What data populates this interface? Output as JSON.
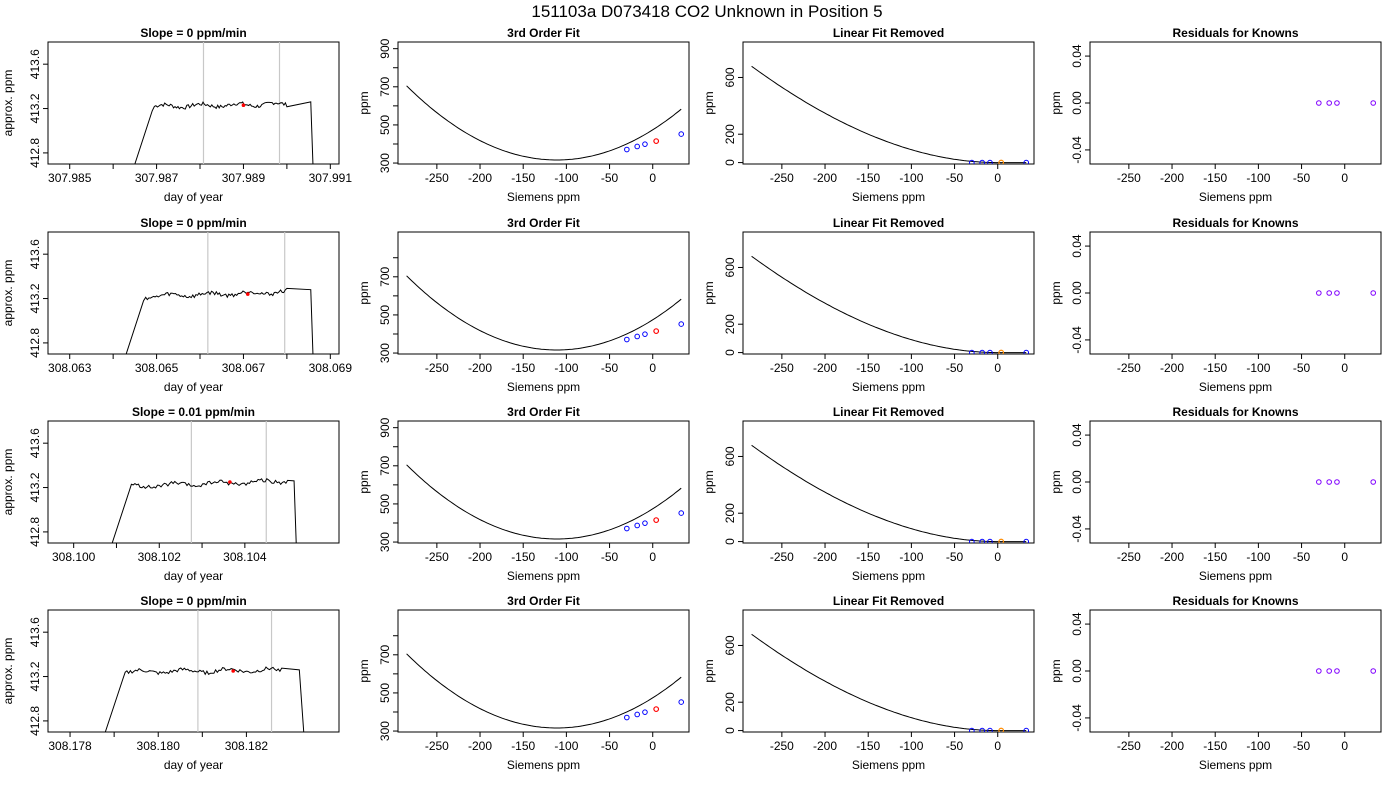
{
  "title": "151103a     D073418   CO2 Unknown in Position  5",
  "colors": {
    "line": "#000000",
    "known": "#0000ff",
    "unknown": "#ff0000",
    "unknown_linear": "#ff8c00",
    "residual": "#8000ff",
    "marker": "#c8c8c8"
  },
  "chart_data": [
    {
      "type": "line",
      "title": "Slope =  0  ppm/min",
      "xlabel": "day of year",
      "ylabel": "approx. ppm",
      "xticks": [
        "307.985",
        "307.987",
        "307.989",
        "307.991"
      ],
      "yticks": [
        "412.8",
        "413.2",
        "413.6"
      ],
      "xlim": [
        307.9845,
        307.9912
      ],
      "ylim": [
        412.7,
        413.8
      ],
      "series": [
        {
          "values_x": [
            307.9865,
            307.9869,
            307.98695,
            307.99,
            307.99055,
            307.9906
          ],
          "values_y": [
            412.7,
            413.18,
            413.22,
            413.24,
            413.26,
            412.7
          ]
        }
      ],
      "markers_x": [
        307.98808,
        307.98983
      ],
      "unknown_point": {
        "x": 307.989,
        "y": 413.23
      }
    },
    {
      "type": "scatter",
      "title": "3rd Order Fit",
      "xlabel": "Siemens ppm",
      "ylabel": "ppm",
      "xticks": [
        "-250",
        "-200",
        "-150",
        "-100",
        "-50",
        "0"
      ],
      "yticks": [
        "300",
        "500",
        "700",
        "900"
      ],
      "xlim": [
        -295,
        42
      ],
      "ylim": [
        295,
        935
      ],
      "knowns_x": [
        -30,
        -18,
        -9,
        33
      ],
      "knowns_y": [
        371,
        387,
        399,
        452
      ],
      "unknown": {
        "x": 4,
        "y": 415
      }
    },
    {
      "type": "scatter",
      "title": "Linear Fit Removed",
      "xlabel": "Siemens ppm",
      "ylabel": "ppm",
      "xticks": [
        "-250",
        "-200",
        "-150",
        "-100",
        "-50",
        "0"
      ],
      "yticks": [
        "0",
        "200",
        "600"
      ],
      "xlim": [
        -295,
        42
      ],
      "ylim": [
        -10,
        850
      ],
      "knowns_x": [
        -30,
        -18,
        -9,
        33
      ],
      "knowns_y": [
        0,
        0,
        0,
        0
      ],
      "unknown": {
        "x": 4,
        "y": 0
      }
    },
    {
      "type": "scatter",
      "title": "Residuals for Knowns",
      "xlabel": "Siemens ppm",
      "ylabel": "ppm",
      "xticks": [
        "-250",
        "-200",
        "-150",
        "-100",
        "-50",
        "0"
      ],
      "yticks": [
        "-0.04",
        "0.00",
        "0.04"
      ],
      "xlim": [
        -295,
        42
      ],
      "ylim": [
        -0.052,
        0.052
      ],
      "knowns_x": [
        -30,
        -18,
        -9,
        33
      ],
      "knowns_y": [
        0,
        0,
        0,
        0
      ]
    },
    {
      "type": "line",
      "title": "Slope =  0  ppm/min",
      "xlabel": "day of year",
      "ylabel": "approx. ppm",
      "xticks": [
        "308.063",
        "308.065",
        "308.067",
        "308.069"
      ],
      "yticks": [
        "412.8",
        "413.2",
        "413.6"
      ],
      "xlim": [
        308.0625,
        308.0692
      ],
      "ylim": [
        412.7,
        413.8
      ],
      "series": [
        {
          "values_x": [
            308.0643,
            308.0647,
            308.06475,
            308.068,
            308.06855,
            308.0686
          ],
          "values_y": [
            412.7,
            413.18,
            413.22,
            413.26,
            413.28,
            412.7
          ]
        }
      ],
      "markers_x": [
        308.06618,
        308.06795
      ],
      "unknown_point": {
        "x": 308.0671,
        "y": 413.24
      }
    },
    {
      "type": "scatter",
      "title": "3rd Order Fit",
      "xlabel": "Siemens ppm",
      "ylabel": "ppm",
      "xticks": [
        "-250",
        "-200",
        "-150",
        "-100",
        "-50",
        "0"
      ],
      "yticks": [
        "300",
        "500",
        "700"
      ],
      "xlim": [
        -295,
        42
      ],
      "ylim": [
        295,
        935
      ],
      "knowns_x": [
        -30,
        -18,
        -9,
        33
      ],
      "knowns_y": [
        371,
        387,
        399,
        452
      ],
      "unknown": {
        "x": 4,
        "y": 415
      }
    },
    {
      "type": "scatter",
      "title": "Linear Fit Removed",
      "xlabel": "Siemens ppm",
      "ylabel": "ppm",
      "xticks": [
        "-250",
        "-200",
        "-150",
        "-100",
        "-50",
        "0"
      ],
      "yticks": [
        "0",
        "200",
        "600"
      ],
      "xlim": [
        -295,
        42
      ],
      "ylim": [
        -10,
        850
      ],
      "knowns_x": [
        -30,
        -18,
        -9,
        33
      ],
      "knowns_y": [
        0,
        0,
        0,
        0
      ],
      "unknown": {
        "x": 4,
        "y": 0
      }
    },
    {
      "type": "scatter",
      "title": "Residuals for Knowns",
      "xlabel": "Siemens ppm",
      "ylabel": "ppm",
      "xticks": [
        "-250",
        "-200",
        "-150",
        "-100",
        "-50",
        "0"
      ],
      "yticks": [
        "-0.04",
        "0.00",
        "0.04"
      ],
      "xlim": [
        -295,
        42
      ],
      "ylim": [
        -0.052,
        0.052
      ],
      "knowns_x": [
        -30,
        -18,
        -9,
        33
      ],
      "knowns_y": [
        0,
        0,
        0,
        0
      ]
    },
    {
      "type": "line",
      "title": "Slope =  0.01  ppm/min",
      "xlabel": "day of year",
      "ylabel": "approx. ppm",
      "xticks": [
        "308.100",
        "308.102",
        "308.104"
      ],
      "yticks": [
        "412.8",
        "413.2",
        "413.6"
      ],
      "xlim": [
        308.0994,
        308.1062
      ],
      "ylim": [
        412.7,
        413.8
      ],
      "series": [
        {
          "values_x": [
            308.1009,
            308.1013,
            308.10135,
            308.105,
            308.10515,
            308.1052
          ],
          "values_y": [
            412.7,
            413.17,
            413.21,
            413.26,
            413.26,
            412.7
          ]
        }
      ],
      "markers_x": [
        308.10275,
        308.1045
      ],
      "unknown_point": {
        "x": 308.10365,
        "y": 413.25
      }
    },
    {
      "type": "scatter",
      "title": "3rd Order Fit",
      "xlabel": "Siemens ppm",
      "ylabel": "ppm",
      "xticks": [
        "-250",
        "-200",
        "-150",
        "-100",
        "-50",
        "0"
      ],
      "yticks": [
        "300",
        "500",
        "700",
        "900"
      ],
      "xlim": [
        -295,
        42
      ],
      "ylim": [
        295,
        935
      ],
      "knowns_x": [
        -30,
        -18,
        -9,
        33
      ],
      "knowns_y": [
        371,
        387,
        399,
        452
      ],
      "unknown": {
        "x": 4,
        "y": 415
      }
    },
    {
      "type": "scatter",
      "title": "Linear Fit Removed",
      "xlabel": "Siemens ppm",
      "ylabel": "ppm",
      "xticks": [
        "-250",
        "-200",
        "-150",
        "-100",
        "-50",
        "0"
      ],
      "yticks": [
        "0",
        "200",
        "600"
      ],
      "xlim": [
        -295,
        42
      ],
      "ylim": [
        -10,
        850
      ],
      "knowns_x": [
        -30,
        -18,
        -9,
        33
      ],
      "knowns_y": [
        0,
        0,
        0,
        0
      ],
      "unknown": {
        "x": 4,
        "y": 0
      }
    },
    {
      "type": "scatter",
      "title": "Residuals for Knowns",
      "xlabel": "Siemens ppm",
      "ylabel": "ppm",
      "xticks": [
        "-250",
        "-200",
        "-150",
        "-100",
        "-50",
        "0"
      ],
      "yticks": [
        "-0.04",
        "0.00",
        "0.04"
      ],
      "xlim": [
        -295,
        42
      ],
      "ylim": [
        -0.052,
        0.052
      ],
      "knowns_x": [
        -30,
        -18,
        -9,
        33
      ],
      "knowns_y": [
        0,
        0,
        0,
        0
      ]
    },
    {
      "type": "line",
      "title": "Slope =  0  ppm/min",
      "xlabel": "day of year",
      "ylabel": "approx. ppm",
      "xticks": [
        "308.178",
        "308.180",
        "308.182"
      ],
      "yticks": [
        "412.8",
        "413.2",
        "413.6"
      ],
      "xlim": [
        308.1775,
        308.1841
      ],
      "ylim": [
        412.7,
        413.8
      ],
      "series": [
        {
          "values_x": [
            308.1788,
            308.1792,
            308.17925,
            308.1828,
            308.1832,
            308.1833
          ],
          "values_y": [
            412.7,
            413.18,
            413.24,
            413.26,
            413.26,
            412.7
          ]
        }
      ],
      "markers_x": [
        308.1809,
        308.18257
      ],
      "unknown_point": {
        "x": 308.1817,
        "y": 413.25
      }
    },
    {
      "type": "scatter",
      "title": "3rd Order Fit",
      "xlabel": "Siemens ppm",
      "ylabel": "ppm",
      "xticks": [
        "-250",
        "-200",
        "-150",
        "-100",
        "-50",
        "0"
      ],
      "yticks": [
        "300",
        "500",
        "700"
      ],
      "xlim": [
        -295,
        42
      ],
      "ylim": [
        295,
        935
      ],
      "knowns_x": [
        -30,
        -18,
        -9,
        33
      ],
      "knowns_y": [
        371,
        387,
        399,
        452
      ],
      "unknown": {
        "x": 4,
        "y": 415
      }
    },
    {
      "type": "scatter",
      "title": "Linear Fit Removed",
      "xlabel": "Siemens ppm",
      "ylabel": "ppm",
      "xticks": [
        "-250",
        "-200",
        "-150",
        "-100",
        "-50",
        "0"
      ],
      "yticks": [
        "0",
        "200",
        "600"
      ],
      "xlim": [
        -295,
        42
      ],
      "ylim": [
        -10,
        850
      ],
      "knowns_x": [
        -30,
        -18,
        -9,
        33
      ],
      "knowns_y": [
        0,
        0,
        0,
        0
      ],
      "unknown": {
        "x": 4,
        "y": 0
      }
    },
    {
      "type": "scatter",
      "title": "Residuals for Knowns",
      "xlabel": "Siemens ppm",
      "ylabel": "ppm",
      "xticks": [
        "-250",
        "-200",
        "-150",
        "-100",
        "-50",
        "0"
      ],
      "yticks": [
        "-0.04",
        "0.00",
        "0.04"
      ],
      "xlim": [
        -295,
        42
      ],
      "ylim": [
        -0.052,
        0.052
      ],
      "knowns_x": [
        -30,
        -18,
        -9,
        33
      ],
      "knowns_y": [
        0,
        0,
        0,
        0
      ]
    }
  ]
}
